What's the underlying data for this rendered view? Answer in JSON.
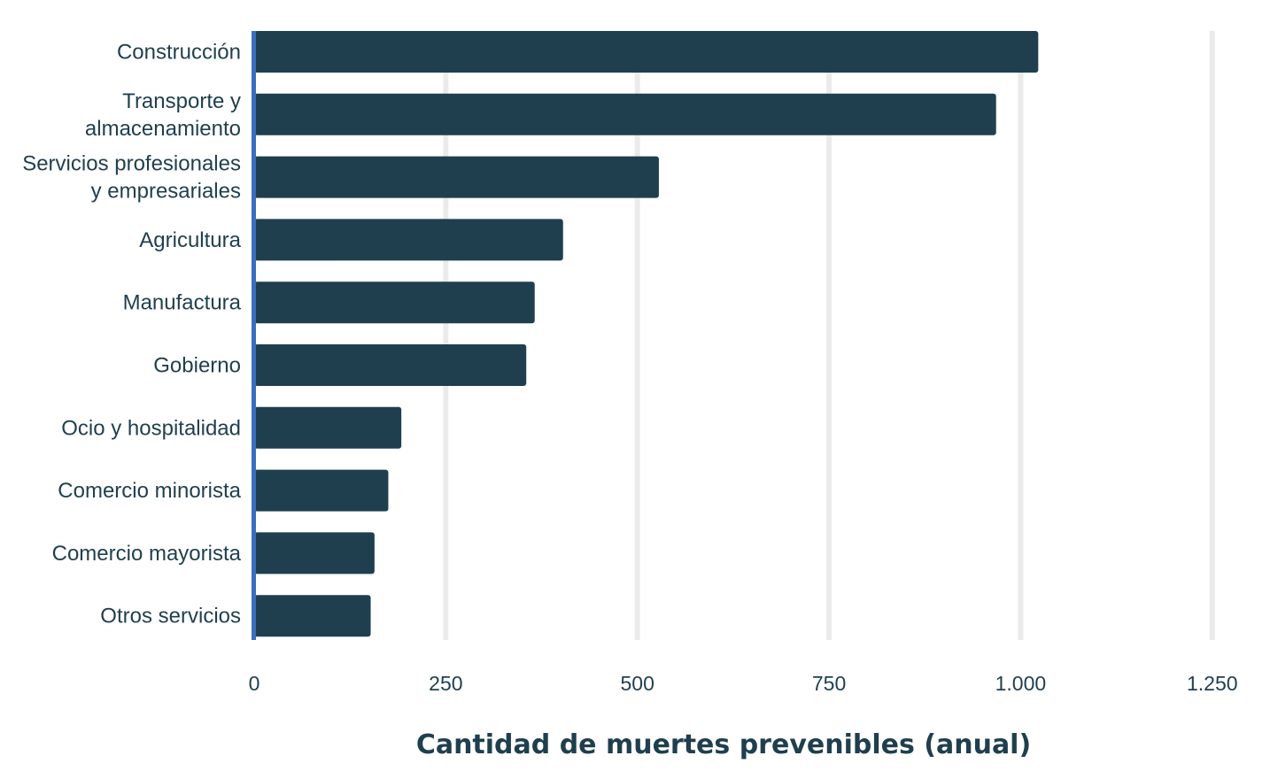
{
  "chart_data": {
    "type": "bar",
    "orientation": "horizontal",
    "categories": [
      "Construcción",
      "Transporte y almacenamiento",
      "Servicios profesionales y empresariales",
      "Agricultura",
      "Manufactura",
      "Gobierno",
      "Ocio y hospitalidad",
      "Comercio minorista",
      "Comercio mayorista",
      "Otros servicios"
    ],
    "category_label_lines": [
      [
        "Construcción"
      ],
      [
        "Transporte y",
        "almacenamiento"
      ],
      [
        "Servicios profesionales",
        "y empresariales"
      ],
      [
        "Agricultura"
      ],
      [
        "Manufactura"
      ],
      [
        "Gobierno"
      ],
      [
        "Ocio y hospitalidad"
      ],
      [
        "Comercio minorista"
      ],
      [
        "Comercio mayorista"
      ],
      [
        "Otros servicios"
      ]
    ],
    "values": [
      1023,
      968,
      528,
      403,
      366,
      355,
      192,
      175,
      157,
      152
    ],
    "xlabel": "Cantidad de muertes prevenibles (anual)",
    "xlim": [
      0,
      1250
    ],
    "x_ticks": [
      0,
      250,
      500,
      750,
      1000,
      1250
    ],
    "x_tick_labels": [
      "0",
      "250",
      "500",
      "750",
      "1.000",
      "1.250"
    ],
    "grid": "vertical",
    "colors": {
      "bar": "#1f3f4e",
      "axis": "#3a6fbf",
      "grid": "#ebebeb",
      "text": "#1f3f4e"
    }
  }
}
